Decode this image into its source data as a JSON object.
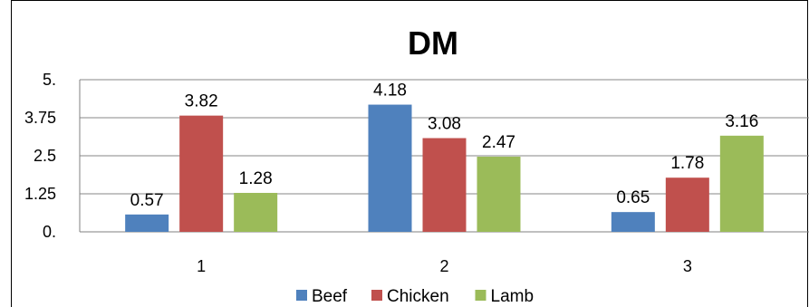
{
  "chart_data": {
    "type": "bar",
    "title": "DM",
    "categories": [
      "1",
      "2",
      "3"
    ],
    "series": [
      {
        "name": "Beef",
        "values": [
          0.57,
          4.18,
          0.65
        ],
        "color": "#4f81bd"
      },
      {
        "name": "Chicken",
        "values": [
          3.82,
          3.08,
          1.78
        ],
        "color": "#c0504d"
      },
      {
        "name": "Lamb",
        "values": [
          1.28,
          2.47,
          3.16
        ],
        "color": "#9bbb59"
      }
    ],
    "data_labels": [
      [
        "0.57",
        "4.18",
        "0.65"
      ],
      [
        "3.82",
        "3.08",
        "1.78"
      ],
      [
        "1.28",
        "2.47",
        "3.16"
      ]
    ],
    "yticks": [
      {
        "value": 0,
        "label": "0."
      },
      {
        "value": 1.25,
        "label": "1.25"
      },
      {
        "value": 2.5,
        "label": "2.5"
      },
      {
        "value": 3.75,
        "label": "3.75"
      },
      {
        "value": 5,
        "label": "5."
      }
    ],
    "ylim": [
      0,
      5
    ],
    "xlabel": "",
    "ylabel": "",
    "grid": true,
    "legend_position": "bottom"
  }
}
